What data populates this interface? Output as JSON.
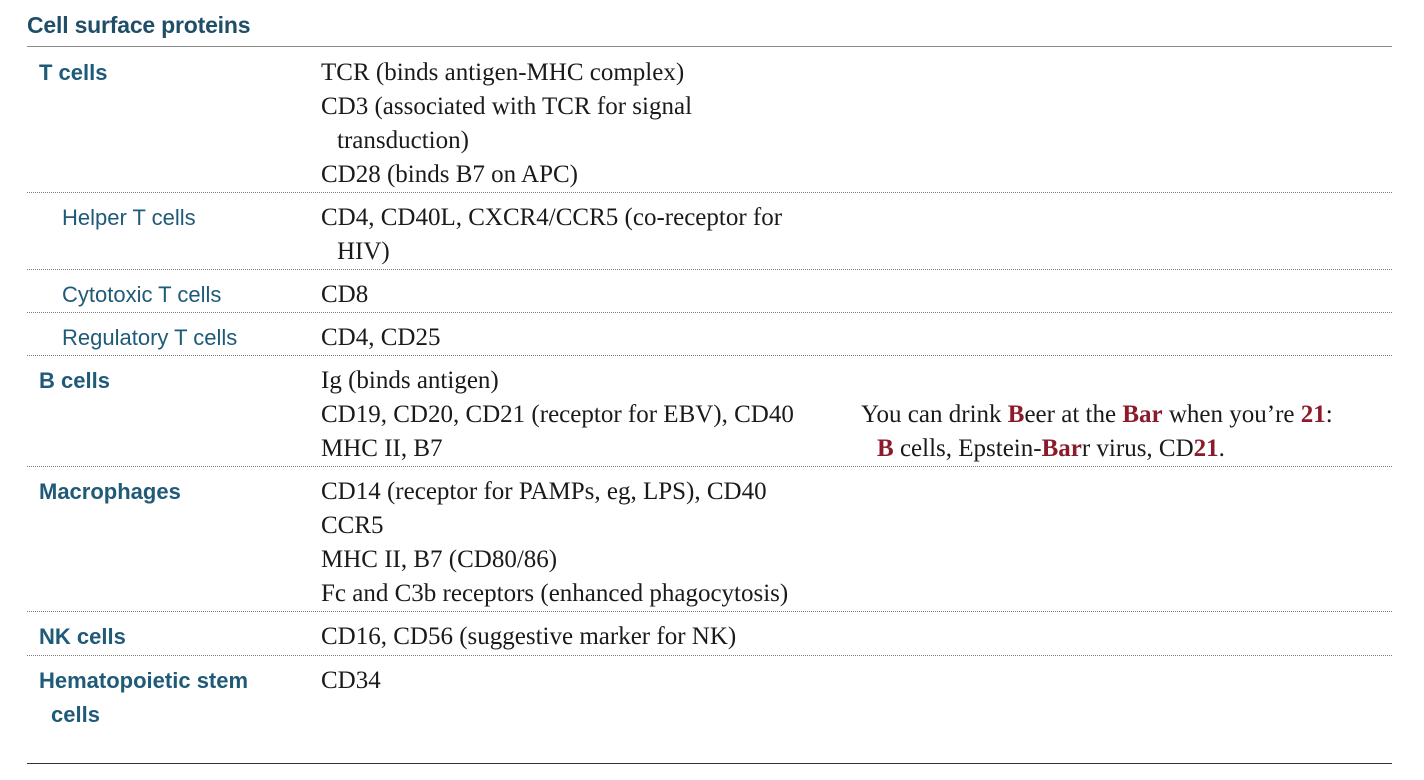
{
  "title": "Cell surface proteins",
  "rows": [
    {
      "label": "T cells",
      "label_cont": "",
      "proteins": [
        "TCR (binds antigen-MHC complex)",
        "CD3 (associated with TCR for signal",
        "transduction)",
        "CD28 (binds B7 on APC)"
      ]
    },
    {
      "label": "Helper T cells",
      "label_cont": "",
      "proteins": [
        "CD4, CD40L, CXCR4/CCR5 (co-receptor for",
        "HIV)"
      ]
    },
    {
      "label": "Cytotoxic T cells",
      "label_cont": "",
      "proteins": [
        "CD8"
      ]
    },
    {
      "label": "Regulatory T cells",
      "label_cont": "",
      "proteins": [
        "CD4, CD25"
      ]
    },
    {
      "label": "B cells",
      "label_cont": "",
      "proteins": [
        "Ig (binds antigen)",
        "CD19, CD20, CD21 (receptor for EBV), CD40",
        "MHC II, B7"
      ]
    },
    {
      "label": "Macrophages",
      "label_cont": "",
      "proteins": [
        "CD14 (receptor for PAMPs, eg, LPS), CD40",
        "CCR5",
        "MHC II, B7 (CD80/86)",
        "Fc and C3b receptors (enhanced phagocytosis)"
      ]
    },
    {
      "label": "NK cells",
      "label_cont": "",
      "proteins": [
        "CD16, CD56 (suggestive marker for NK)"
      ]
    },
    {
      "label": "Hematopoietic stem",
      "label_cont": "cells",
      "proteins": [
        "CD34"
      ]
    }
  ],
  "mnemonic": {
    "l1_a": "You can drink ",
    "l1_b": "B",
    "l1_c": "eer at the ",
    "l1_d": "Bar",
    "l1_e": " when you’re ",
    "l1_f": "21",
    "l1_g": ":",
    "l2_a": "B",
    "l2_b": " cells, Epstein-",
    "l2_c": "Bar",
    "l2_d": "r virus, CD",
    "l2_e": "21",
    "l2_f": "."
  },
  "colors": {
    "title": "#1f4e66",
    "label": "#1f5a78",
    "highlight": "#8b1a2b",
    "body_text": "#1a1a1a"
  }
}
